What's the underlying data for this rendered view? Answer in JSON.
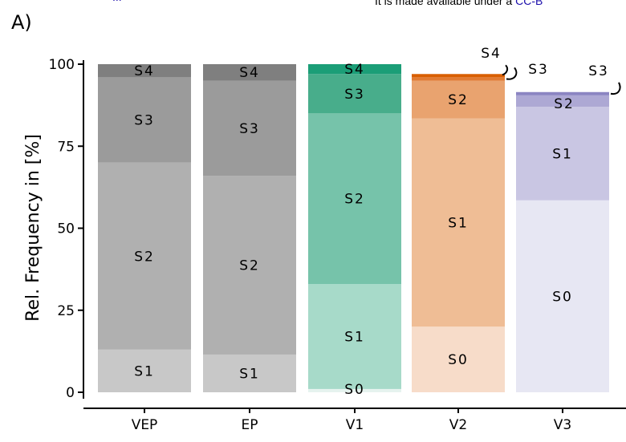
{
  "header": {
    "top_link_fragment": "...",
    "license_prefix": "It is made available under a ",
    "license_link": "CC-B"
  },
  "panel_label": "A)",
  "chart_data": {
    "type": "bar",
    "stacked": true,
    "ylabel": "Rel. Frequency in [%]",
    "xlabel": "",
    "ylim": [
      0,
      100
    ],
    "yticks": [
      0,
      25,
      50,
      75,
      100
    ],
    "categories": [
      "VEP",
      "EP",
      "V1",
      "V2",
      "V3"
    ],
    "stages": [
      "S0",
      "S1",
      "S2",
      "S3",
      "S4"
    ],
    "bars": [
      {
        "category": "VEP",
        "segments": [
          {
            "stage": "S1",
            "value": 13.0,
            "color": "#c8c8c8",
            "label": "S1"
          },
          {
            "stage": "S2",
            "value": 57.0,
            "color": "#b0b0b0",
            "label": "S2"
          },
          {
            "stage": "S3",
            "value": 26.0,
            "color": "#9b9b9b",
            "label": "S3"
          },
          {
            "stage": "S4",
            "value": 4.0,
            "color": "#7f7f7f",
            "label": "S4"
          }
        ]
      },
      {
        "category": "EP",
        "segments": [
          {
            "stage": "S1",
            "value": 11.5,
            "color": "#c8c8c8",
            "label": "S1"
          },
          {
            "stage": "S2",
            "value": 54.5,
            "color": "#b0b0b0",
            "label": "S2"
          },
          {
            "stage": "S3",
            "value": 29.0,
            "color": "#9b9b9b",
            "label": "S3"
          },
          {
            "stage": "S4",
            "value": 5.0,
            "color": "#7f7f7f",
            "label": "S4"
          }
        ]
      },
      {
        "category": "V1",
        "segments": [
          {
            "stage": "S0",
            "value": 1.0,
            "color": "#e6f3ef",
            "label": "S0"
          },
          {
            "stage": "S1",
            "value": 32.0,
            "color": "#a7dac9",
            "label": "S1"
          },
          {
            "stage": "S2",
            "value": 52.0,
            "color": "#76c3aa",
            "label": "S2"
          },
          {
            "stage": "S3",
            "value": 12.0,
            "color": "#48ad8b",
            "label": "S3"
          },
          {
            "stage": "S4",
            "value": 3.0,
            "color": "#1b9e77",
            "label": "S4"
          }
        ]
      },
      {
        "category": "V2",
        "segments": [
          {
            "stage": "S0",
            "value": 20.0,
            "color": "#f7dcc9",
            "label": "S0"
          },
          {
            "stage": "S1",
            "value": 63.5,
            "color": "#efbd95",
            "label": "S1"
          },
          {
            "stage": "S2",
            "value": 11.5,
            "color": "#e9a36f",
            "label": "S2"
          },
          {
            "stage": "S3",
            "value": 1.0,
            "color": "#e27b33",
            "label": "S3"
          },
          {
            "stage": "S4",
            "value": 1.0,
            "color": "#d95f02",
            "label": "S4"
          }
        ]
      },
      {
        "category": "V3",
        "segments": [
          {
            "stage": "S0",
            "value": 58.5,
            "color": "#e7e7f3",
            "label": "S0"
          },
          {
            "stage": "S1",
            "value": 28.5,
            "color": "#c9c6e3",
            "label": "S1"
          },
          {
            "stage": "S2",
            "value": 3.5,
            "color": "#ada8d4",
            "label": "S2"
          },
          {
            "stage": "S3",
            "value": 1.0,
            "color": "#8b85c2",
            "label": "S3"
          }
        ]
      }
    ]
  }
}
